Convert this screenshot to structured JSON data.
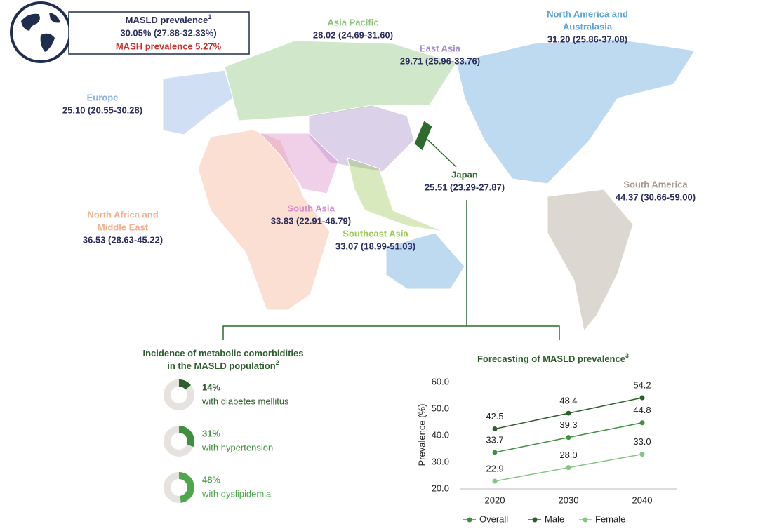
{
  "header_box": {
    "title": "MASLD prevalence",
    "title_superscript": "1",
    "range": "30.05% (27.88-32.33%)",
    "mash": "MASH prevalence 5.27%"
  },
  "regions": [
    {
      "name": [
        "Asia Pacific"
      ],
      "value": "28.02 (24.69-31.60)",
      "color": "#8cc47a"
    },
    {
      "name": [
        "East Asia"
      ],
      "value": "29.71 (25.96-33.76)",
      "color": "#a58bc7"
    },
    {
      "name": [
        "North America and",
        "Australasia"
      ],
      "value": "31.20 (25.86-37.08)",
      "color": "#5ba3d9"
    },
    {
      "name": [
        "Europe"
      ],
      "value": "25.10 (20.55-30.28)",
      "color": "#8aaee0"
    },
    {
      "name": [
        "Japan"
      ],
      "value": "25.51 (23.29-27.87)",
      "color": "#2e6b2e"
    },
    {
      "name": [
        "South America"
      ],
      "value": "44.37 (30.66-59.00)",
      "color": "#a89a8a"
    },
    {
      "name": [
        "North Africa and",
        "Middle East"
      ],
      "value": "36.53 (28.63-45.22)",
      "color": "#f2b08f"
    },
    {
      "name": [
        "South Asia"
      ],
      "value": "33.83 (22.91-46.79)",
      "color": "#d98ac9"
    },
    {
      "name": [
        "Southeast Asia"
      ],
      "value": "33.07 (18.99-51.03)",
      "color": "#9cc95a"
    }
  ],
  "comorbidities": {
    "title_lines": [
      "Incidence of metabolic comorbidities",
      "in the MASLD population"
    ],
    "title_superscript": "2",
    "items": [
      {
        "value": 14,
        "value_label": "14%",
        "text": "with diabetes mellitus",
        "color": "#2d5e2d"
      },
      {
        "value": 31,
        "value_label": "31%",
        "text": "with hypertension",
        "color": "#3f8f3f"
      },
      {
        "value": 48,
        "value_label": "48%",
        "text": "with dyslipidemia",
        "color": "#4ea64e"
      }
    ]
  },
  "chart_data": {
    "type": "line",
    "title": "Forecasting of MASLD prevalence",
    "title_superscript": "3",
    "y_label": "Prevalence (%)",
    "categories": [
      "2020",
      "2030",
      "2040"
    ],
    "ylim": [
      20,
      60
    ],
    "yticks": [
      {
        "value": 20,
        "label": "20.0"
      },
      {
        "value": 30,
        "label": "30.0"
      },
      {
        "value": 40,
        "label": "40.0"
      },
      {
        "value": 50,
        "label": "50.0"
      },
      {
        "value": 60,
        "label": "60.0"
      }
    ],
    "series": [
      {
        "name": "Overall",
        "color": "#3f8f3f",
        "values": [
          33.7,
          39.3,
          44.8
        ],
        "value_labels": [
          "33.7",
          "39.3",
          "44.8"
        ]
      },
      {
        "name": "Male",
        "color": "#2d5e2d",
        "values": [
          42.5,
          48.4,
          54.2
        ],
        "value_labels": [
          "42.5",
          "48.4",
          "54.2"
        ]
      },
      {
        "name": "Female",
        "color": "#86c486",
        "values": [
          22.9,
          28.0,
          33.0
        ],
        "value_labels": [
          "22.9",
          "28.0",
          "33.0"
        ]
      }
    ]
  }
}
